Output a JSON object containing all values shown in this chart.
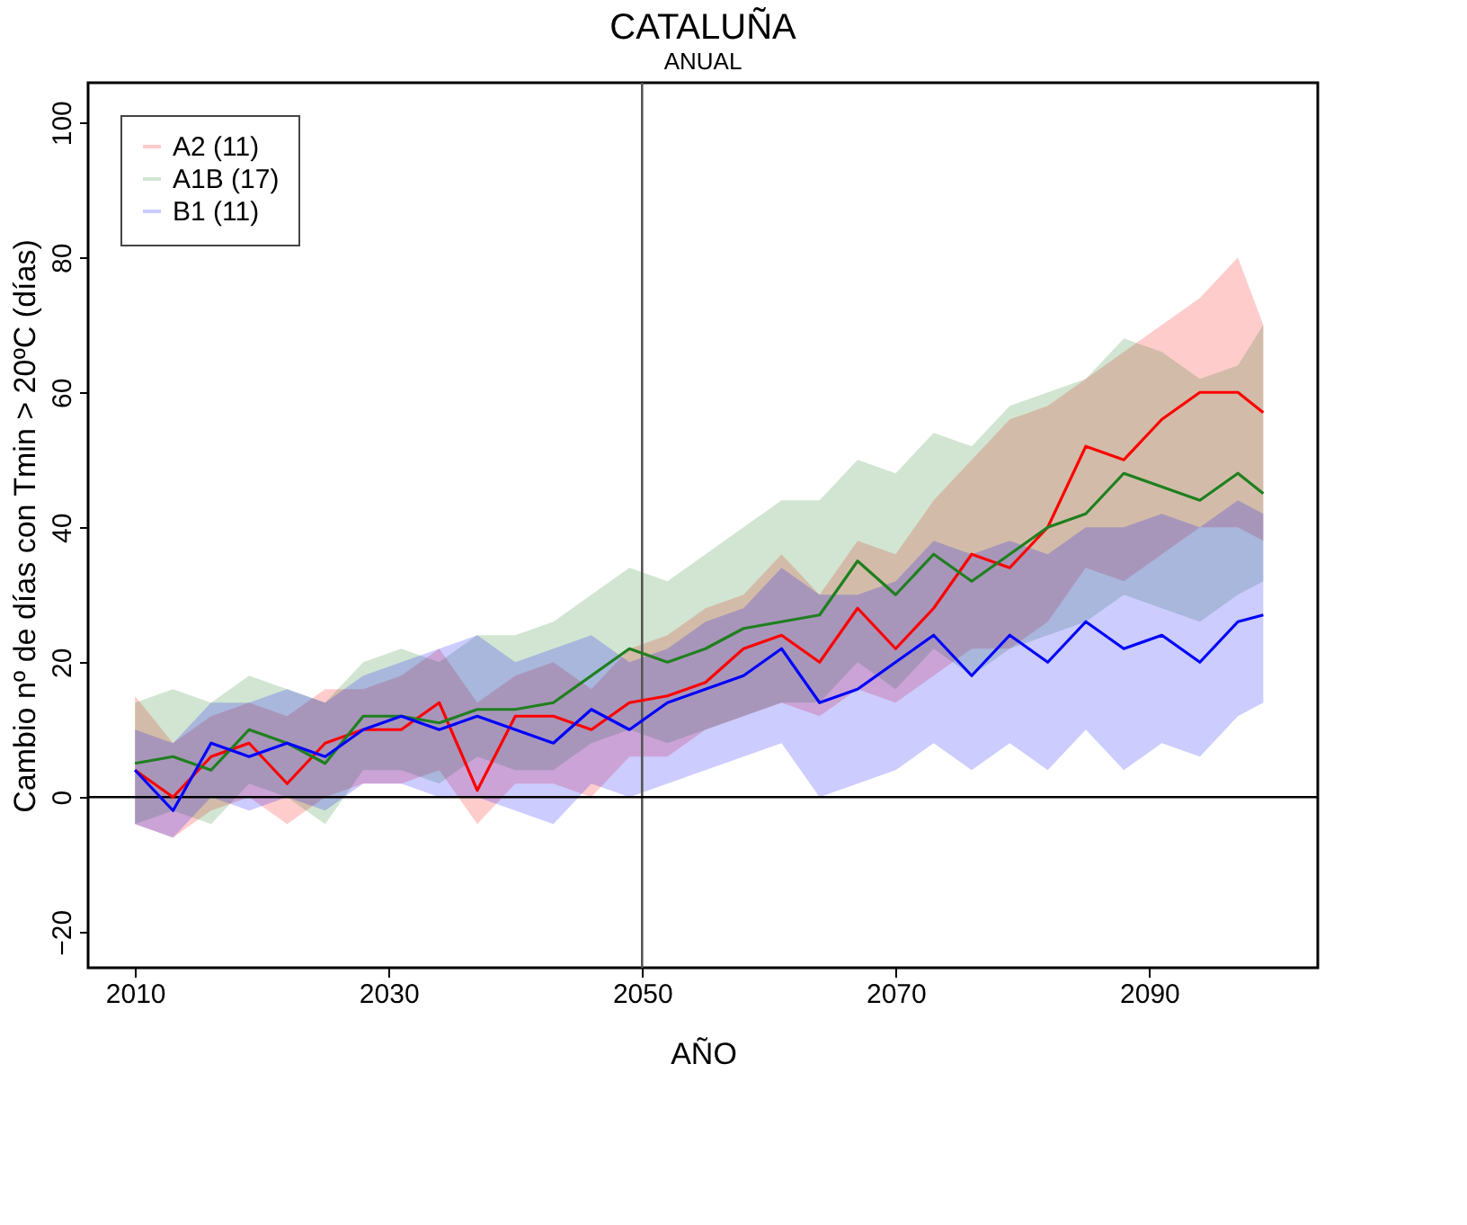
{
  "chart_data": {
    "type": "line",
    "title": "CATALUÑA",
    "subtitle": "ANUAL",
    "xlabel": "AÑO",
    "ylabel": "Cambio nº de días con Tmin > 20ºC (días)",
    "x": [
      2010,
      2013,
      2016,
      2019,
      2022,
      2025,
      2028,
      2031,
      2034,
      2037,
      2040,
      2043,
      2046,
      2049,
      2052,
      2055,
      2058,
      2061,
      2064,
      2067,
      2070,
      2073,
      2076,
      2079,
      2082,
      2085,
      2088,
      2091,
      2094,
      2097,
      2099
    ],
    "series": [
      {
        "name": "A2 (11)",
        "color": "#ff0000",
        "values": [
          4,
          0,
          6,
          8,
          2,
          8,
          10,
          10,
          14,
          1,
          12,
          12,
          10,
          14,
          15,
          17,
          22,
          24,
          20,
          28,
          22,
          28,
          36,
          34,
          40,
          52,
          50,
          56,
          60,
          60,
          57
        ],
        "lower": [
          -4,
          -6,
          -2,
          0,
          -4,
          0,
          2,
          2,
          4,
          -4,
          2,
          2,
          0,
          6,
          6,
          10,
          12,
          14,
          12,
          16,
          14,
          18,
          22,
          22,
          26,
          34,
          32,
          36,
          40,
          40,
          38
        ],
        "upper": [
          15,
          8,
          12,
          14,
          12,
          16,
          16,
          18,
          22,
          14,
          18,
          20,
          16,
          22,
          24,
          28,
          30,
          36,
          30,
          38,
          36,
          44,
          50,
          56,
          58,
          62,
          66,
          70,
          74,
          80,
          70
        ]
      },
      {
        "name": "A1B (17)",
        "color": "#1f7f1f",
        "values": [
          5,
          6,
          4,
          10,
          8,
          5,
          12,
          12,
          11,
          13,
          13,
          14,
          18,
          22,
          20,
          22,
          25,
          26,
          27,
          35,
          30,
          36,
          32,
          36,
          40,
          42,
          48,
          46,
          44,
          48,
          45
        ],
        "lower": [
          -4,
          -2,
          -4,
          2,
          0,
          -4,
          4,
          4,
          2,
          6,
          4,
          4,
          8,
          10,
          8,
          10,
          12,
          14,
          14,
          20,
          16,
          22,
          18,
          22,
          24,
          26,
          30,
          28,
          26,
          30,
          32
        ],
        "upper": [
          14,
          16,
          14,
          18,
          16,
          14,
          20,
          22,
          20,
          24,
          24,
          26,
          30,
          34,
          32,
          36,
          40,
          44,
          44,
          50,
          48,
          54,
          52,
          58,
          60,
          62,
          68,
          66,
          62,
          64,
          70
        ]
      },
      {
        "name": "B1 (11)",
        "color": "#0000ff",
        "values": [
          4,
          -2,
          8,
          6,
          8,
          6,
          10,
          12,
          10,
          12,
          10,
          8,
          13,
          10,
          14,
          16,
          18,
          22,
          14,
          16,
          20,
          24,
          18,
          24,
          20,
          26,
          22,
          24,
          20,
          26,
          27
        ],
        "lower": [
          -4,
          -6,
          0,
          -2,
          0,
          -2,
          2,
          2,
          0,
          0,
          -2,
          -4,
          2,
          0,
          2,
          4,
          6,
          8,
          0,
          2,
          4,
          8,
          4,
          8,
          4,
          10,
          4,
          8,
          6,
          12,
          14
        ],
        "upper": [
          10,
          8,
          14,
          14,
          16,
          14,
          18,
          20,
          22,
          24,
          20,
          22,
          24,
          20,
          22,
          26,
          28,
          34,
          30,
          30,
          32,
          38,
          36,
          38,
          36,
          40,
          40,
          42,
          40,
          44,
          42
        ]
      }
    ],
    "xlim": [
      2006.3,
      2103.3
    ],
    "xticks": [
      2010,
      2030,
      2050,
      2070,
      2090
    ],
    "ylim": [
      -25.3,
      105.9
    ],
    "yticks": [
      -20,
      0,
      20,
      40,
      60,
      80,
      100
    ],
    "ref_lines": [
      {
        "axis": "x",
        "value": 2050,
        "color": "#555555"
      },
      {
        "axis": "y",
        "value": 0,
        "color": "#000000"
      }
    ],
    "legend": "top left",
    "grid": false
  }
}
